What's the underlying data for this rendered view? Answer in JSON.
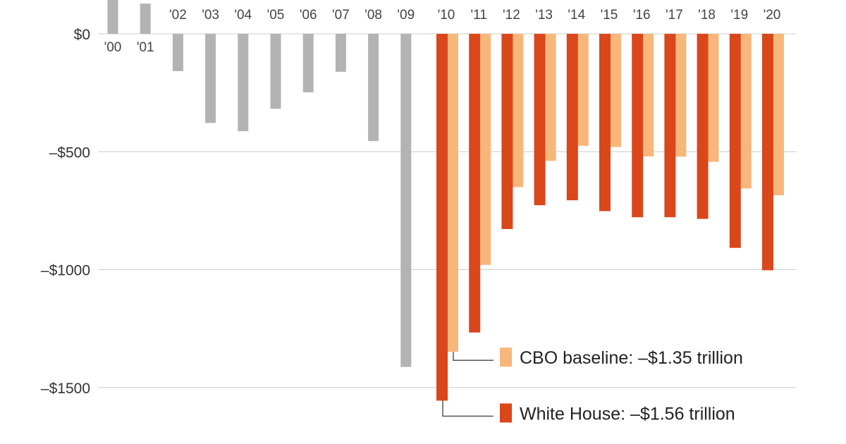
{
  "chart_data": {
    "type": "bar",
    "units": "",
    "ylim": [
      -1650,
      150
    ],
    "yticks": [
      {
        "value": 0,
        "label": "$0"
      },
      {
        "value": -500,
        "label": "–$500"
      },
      {
        "value": -1000,
        "label": "–$1000"
      },
      {
        "value": -1500,
        "label": "–$1500"
      }
    ],
    "grid": true,
    "history": {
      "x": [
        "'00",
        "'01",
        "'02",
        "'03",
        "'04",
        "'05",
        "'06",
        "'07",
        "'08",
        "'09"
      ],
      "values": [
        236,
        128,
        -158,
        -378,
        -413,
        -318,
        -248,
        -161,
        -455,
        -1413
      ],
      "color": "#b3b3b3"
    },
    "projection_labels": [
      "'10",
      "'11",
      "'12",
      "'13",
      "'14",
      "'15",
      "'16",
      "'17",
      "'18",
      "'19",
      "'20"
    ],
    "series": [
      {
        "name": "White House",
        "label": "White House: –$1.56 trillion",
        "color": "#d9471b",
        "values": [
          -1556,
          -1267,
          -828,
          -727,
          -706,
          -752,
          -778,
          -778,
          -785,
          -908,
          -1003
        ]
      },
      {
        "name": "CBO baseline",
        "label": "CBO baseline: –$1.35 trillion",
        "color": "#f7b77b",
        "values": [
          -1349,
          -980,
          -650,
          -539,
          -475,
          -480,
          -520,
          -521,
          -543,
          -656,
          -685
        ]
      }
    ],
    "legend_placement": "bottom-right"
  }
}
